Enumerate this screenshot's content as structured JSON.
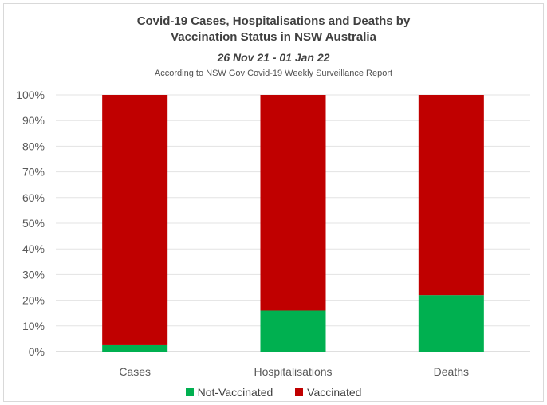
{
  "chart_data": {
    "type": "bar",
    "stacked": true,
    "title": "Covid-19 Cases, Hospitalisations and Deaths by",
    "title_line2": "Vaccination Status in NSW Australia",
    "subtitle": "26 Nov 21 - 01 Jan 22",
    "source_note": "According to NSW Gov Covid-19 Weekly Surveillance Report",
    "categories": [
      "Cases",
      "Hospitalisations",
      "Deaths"
    ],
    "series": [
      {
        "name": "Not-Vaccinated",
        "color": "#00b050",
        "values": [
          2.5,
          16,
          22
        ]
      },
      {
        "name": "Vaccinated",
        "color": "#c00000",
        "values": [
          97.5,
          84,
          78
        ]
      }
    ],
    "ylim": [
      0,
      100
    ],
    "yticks": [
      "0%",
      "10%",
      "20%",
      "30%",
      "40%",
      "50%",
      "60%",
      "70%",
      "80%",
      "90%",
      "100%"
    ],
    "grid": true,
    "legend_position": "bottom"
  }
}
